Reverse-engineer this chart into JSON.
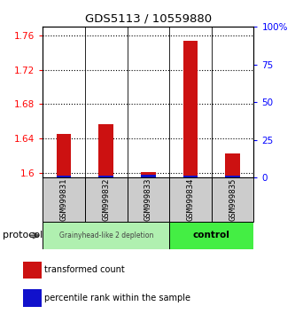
{
  "title": "GDS5113 / 10559880",
  "samples": [
    "GSM999831",
    "GSM999832",
    "GSM999833",
    "GSM999834",
    "GSM999835"
  ],
  "red_values": [
    1.645,
    1.657,
    1.601,
    1.754,
    1.623
  ],
  "blue_values": [
    1.0,
    1.0,
    2.0,
    1.0,
    1.0
  ],
  "ylim_left": [
    1.595,
    1.77
  ],
  "yticks_left": [
    1.6,
    1.64,
    1.68,
    1.72,
    1.76
  ],
  "ytick_labels_left": [
    "1.6",
    "1.64",
    "1.68",
    "1.72",
    "1.76"
  ],
  "yticks_right": [
    0,
    25,
    50,
    75,
    100
  ],
  "ytick_labels_right": [
    "0",
    "25",
    "50",
    "75",
    "100%"
  ],
  "groups": [
    {
      "label": "Grainyhead-like 2 depletion",
      "n": 3,
      "color": "#b0f0b0"
    },
    {
      "label": "control",
      "n": 2,
      "color": "#44ee44"
    }
  ],
  "red_color": "#cc1111",
  "blue_color": "#1111cc",
  "sample_box_color": "#cccccc",
  "legend_red": "transformed count",
  "legend_blue": "percentile rank within the sample",
  "protocol_label": "protocol"
}
